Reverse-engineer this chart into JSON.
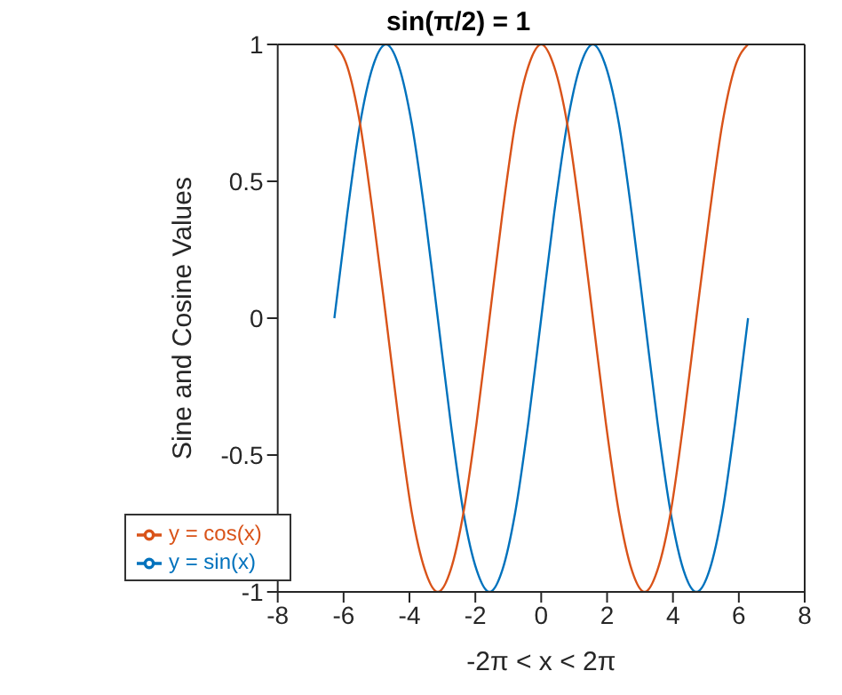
{
  "chart_data": {
    "type": "line",
    "title": "sin(π/2) = 1",
    "xlabel": "-2π < x < 2π",
    "ylabel": "Sine and Cosine Values",
    "x": [
      -6.28,
      -5.89,
      -5.5,
      -5.11,
      -4.71,
      -4.32,
      -3.93,
      -3.53,
      -3.14,
      -2.75,
      -2.36,
      -1.96,
      -1.57,
      -1.18,
      -0.79,
      -0.39,
      0,
      0.39,
      0.79,
      1.18,
      1.57,
      1.96,
      2.36,
      2.75,
      3.14,
      3.53,
      3.93,
      4.32,
      4.71,
      5.11,
      5.5,
      5.89,
      6.28
    ],
    "series": [
      {
        "name": "y = sin(x)",
        "color": "#0072bd",
        "values": [
          0,
          0.38,
          0.71,
          0.92,
          1,
          0.92,
          0.71,
          0.38,
          0,
          -0.38,
          -0.71,
          -0.92,
          -1,
          -0.92,
          -0.71,
          -0.38,
          0,
          0.38,
          0.71,
          0.92,
          1,
          0.92,
          0.71,
          0.38,
          0,
          -0.38,
          -0.71,
          -0.92,
          -1,
          -0.92,
          -0.71,
          -0.38,
          0
        ]
      },
      {
        "name": "y = cos(x)",
        "color": "#d95319",
        "values": [
          1,
          0.92,
          0.71,
          0.38,
          0,
          -0.38,
          -0.71,
          -0.92,
          -1,
          -0.92,
          -0.71,
          -0.38,
          0,
          0.38,
          0.71,
          0.92,
          1,
          0.92,
          0.71,
          0.38,
          0,
          -0.38,
          -0.71,
          -0.92,
          -1,
          -0.92,
          -0.71,
          -0.38,
          0,
          0.38,
          0.71,
          0.92,
          1
        ]
      }
    ],
    "xlim": [
      -8,
      8
    ],
    "xticks": [
      -8,
      -6,
      -4,
      -2,
      0,
      2,
      4,
      6,
      8
    ],
    "ylim": [
      -1,
      1
    ],
    "yticks": [
      -1,
      -0.5,
      0,
      0.5,
      1
    ],
    "legend": "bottom left",
    "grid": false,
    "marker": "none",
    "line_style": "solid"
  }
}
